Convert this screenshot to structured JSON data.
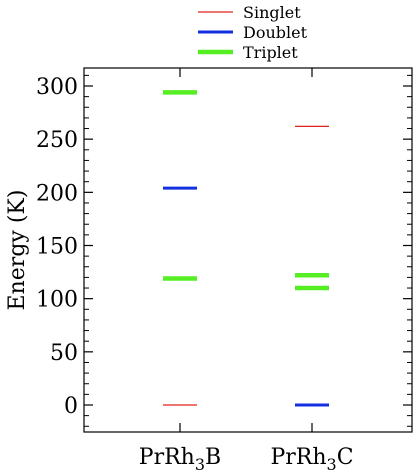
{
  "chart_data": {
    "type": "scatter",
    "ylabel": "Energy (K)",
    "ylim": [
      -25,
      318
    ],
    "yticks": [
      0,
      50,
      100,
      150,
      200,
      250,
      300
    ],
    "ytick_labels": [
      "0",
      "50",
      "100",
      "150",
      "200",
      "250",
      "300"
    ],
    "grid": false,
    "legend_position": "top-center",
    "categories": [
      {
        "base": "PrRh",
        "sub": "3",
        "tail": "B"
      },
      {
        "base": "PrRh",
        "sub": "3",
        "tail": "C"
      }
    ],
    "series": [
      {
        "name": "Singlet",
        "color": "#e0201c",
        "points": [
          {
            "category": 0,
            "y": 0
          },
          {
            "category": 1,
            "y": 262
          }
        ]
      },
      {
        "name": "Doublet",
        "color": "#1230e0",
        "points": [
          {
            "category": 0,
            "y": 204
          },
          {
            "category": 1,
            "y": 0
          }
        ]
      },
      {
        "name": "Triplet",
        "color": "#55ee22",
        "points": [
          {
            "category": 0,
            "y": 119
          },
          {
            "category": 0,
            "y": 294
          },
          {
            "category": 1,
            "y": 110
          },
          {
            "category": 1,
            "y": 122
          }
        ]
      }
    ]
  }
}
